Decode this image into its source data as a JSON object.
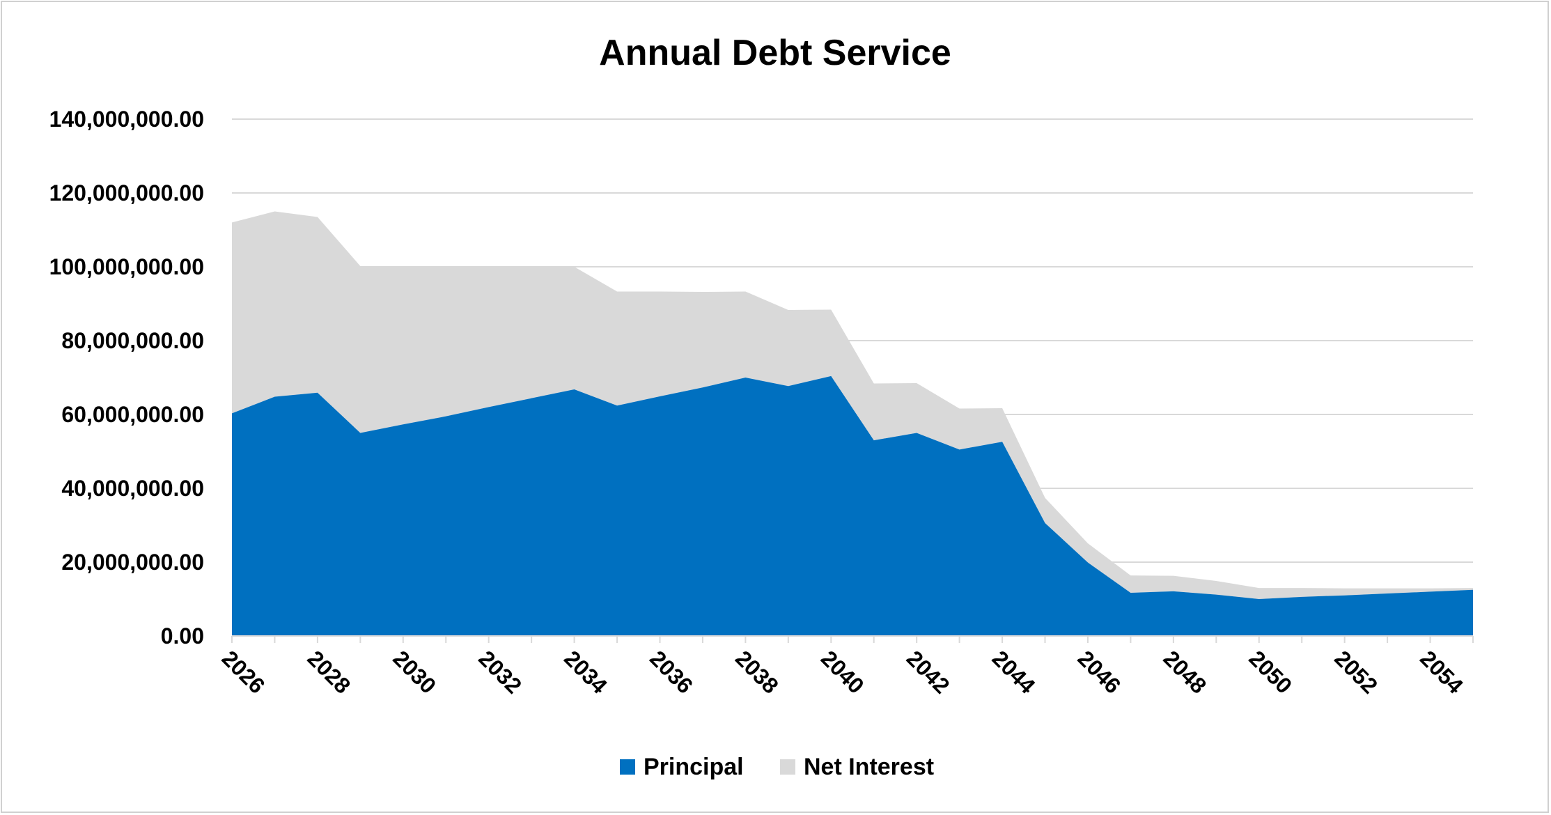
{
  "chart_data": {
    "type": "area",
    "stacked": true,
    "title": "Annual Debt Service",
    "xlabel": "",
    "ylabel": "",
    "ylim": [
      0,
      140000000
    ],
    "y_ticks": [
      0,
      20000000,
      40000000,
      60000000,
      80000000,
      100000000,
      120000000,
      140000000
    ],
    "y_tick_labels": [
      "0.00",
      "20,000,000.00",
      "40,000,000.00",
      "60,000,000.00",
      "80,000,000.00",
      "100,000,000.00",
      "120,000,000.00",
      "140,000,000.00"
    ],
    "x": [
      2026,
      2027,
      2028,
      2029,
      2030,
      2031,
      2032,
      2033,
      2034,
      2035,
      2036,
      2037,
      2038,
      2039,
      2040,
      2041,
      2042,
      2043,
      2044,
      2045,
      2046,
      2047,
      2048,
      2049,
      2050,
      2051,
      2052,
      2053,
      2054,
      2055
    ],
    "x_tick_labels": [
      "2026",
      "2028",
      "2030",
      "2032",
      "2034",
      "2036",
      "2038",
      "2040",
      "2042",
      "2044",
      "2046",
      "2048",
      "2050",
      "2052",
      "2054"
    ],
    "grid": true,
    "legend_position": "bottom",
    "series": [
      {
        "name": "Principal",
        "color": "#0070c0",
        "values": [
          60300000,
          64800000,
          65900000,
          55000000,
          57300000,
          59500000,
          62000000,
          64400000,
          66800000,
          62400000,
          64900000,
          67300000,
          70000000,
          67700000,
          70400000,
          53000000,
          55000000,
          50500000,
          52600000,
          30600000,
          19900000,
          11700000,
          12100000,
          11200000,
          10000000,
          10600000,
          11000000,
          11500000,
          12000000,
          12500000
        ]
      },
      {
        "name": "Net Interest",
        "color": "#d9d9d9",
        "values": [
          51700000,
          50200000,
          47600000,
          45200000,
          42700000,
          40500000,
          38000000,
          35600000,
          33200000,
          30900000,
          28400000,
          25900000,
          23300000,
          20600000,
          18000000,
          15400000,
          13500000,
          11100000,
          9100000,
          6800000,
          5200000,
          4700000,
          4200000,
          3700000,
          3000000,
          2400000,
          1900000,
          1400000,
          900000,
          500000
        ]
      }
    ]
  }
}
